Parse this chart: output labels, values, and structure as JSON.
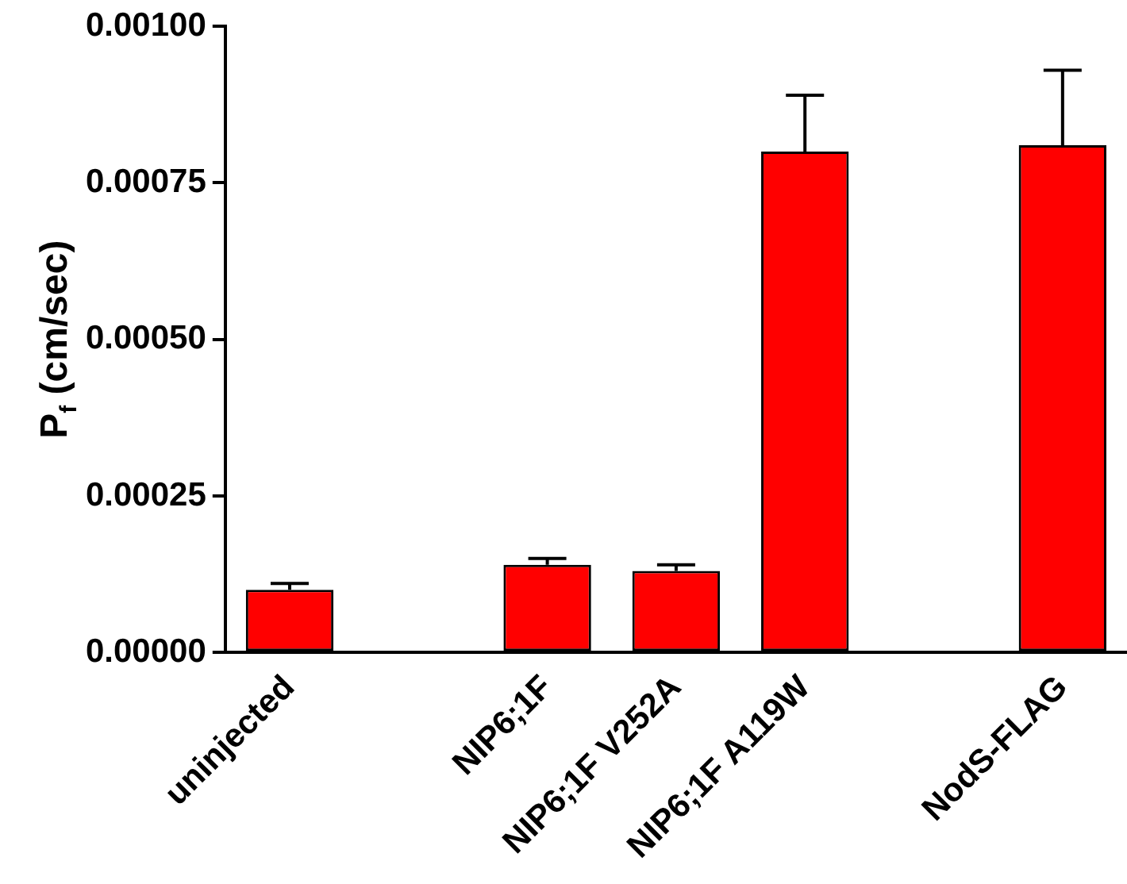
{
  "chart_data": {
    "type": "bar",
    "ylabel": "P$_{f}$ (cm/sec)",
    "categories": [
      "uninjected",
      null,
      "NIP6;1F",
      "NIP6;1F V252A",
      "NIP6;1F A119W",
      null,
      "NodS-FLAG"
    ],
    "values": [
      0.0001,
      0,
      0.00014,
      0.00013,
      0.0008,
      0,
      0.00081
    ],
    "errors": [
      [
        0.0001,
        0.00011
      ],
      null,
      [
        0.00014,
        0.00015
      ],
      [
        0.00013,
        0.00014
      ],
      [
        0.0008,
        0.00089
      ],
      null,
      [
        0.00081,
        0.00093
      ]
    ],
    "color": "#ff0000",
    "ylim": [
      0,
      0.001
    ],
    "yticks": [
      {
        "value": 0,
        "label": "0.00000"
      },
      {
        "value": 0.00025,
        "label": "0.00025"
      },
      {
        "value": 0.0005,
        "label": "0.00050"
      },
      {
        "value": 0.00075,
        "label": "0.00075"
      },
      {
        "value": 0.001,
        "label": "0.00100"
      }
    ],
    "grid": false,
    "legend": false
  }
}
